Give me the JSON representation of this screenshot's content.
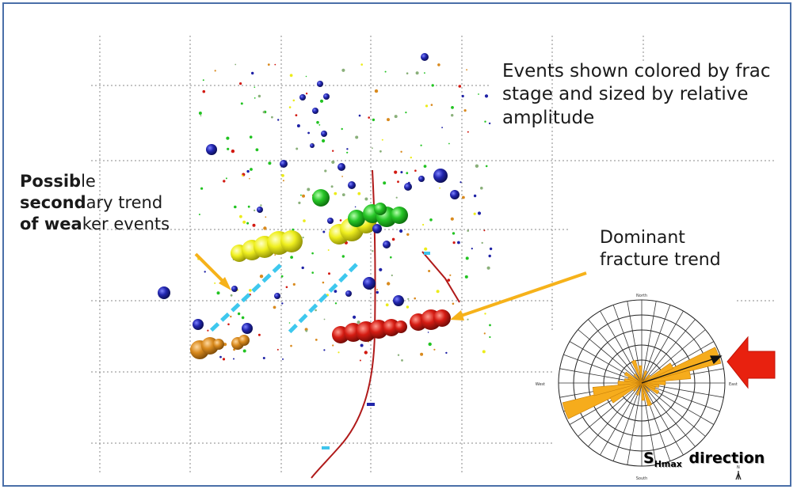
{
  "annotations": {
    "events_caption": "Events shown colored by frac stage and sized by relative amplitude",
    "secondary_1": "Possib",
    "secondary_1b": "le",
    "secondary_2": "second",
    "secondary_2b": "ary trend",
    "secondary_3": "of wea",
    "secondary_3b": "ker events",
    "dominant_1": "Dominant",
    "dominant_2": "fracture trend",
    "shmax_main": "S",
    "shmax_sub": "Hmax",
    "shmax_rest": " direction"
  },
  "rose": {
    "north": "North",
    "south": "South",
    "east": "East",
    "west": "West"
  },
  "north_arrow": "N",
  "colors": {
    "stage_blue": "#1f22a6",
    "stage_green": "#22c322",
    "stage_yellow": "#ecec1a",
    "stage_red": "#d21a12",
    "stage_orange": "#d98a1e",
    "trend_dashed": "#3ec8ee",
    "pointer_arrow": "#f6b21a",
    "rose_petal": "#f6ac1c",
    "shmax_arrow": "#e8210f",
    "wellbore": "#b01a1a"
  }
}
